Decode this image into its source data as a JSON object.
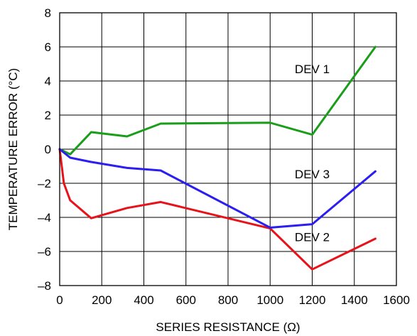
{
  "chart_data": {
    "type": "line",
    "title": "",
    "xlabel": "SERIES RESISTANCE (Ω)",
    "ylabel": "TEMPERATURE ERROR (°C)",
    "xlim": [
      0,
      1600
    ],
    "ylim": [
      -8,
      8
    ],
    "x_ticks": [
      0,
      200,
      400,
      600,
      800,
      1000,
      1200,
      1400,
      1600
    ],
    "y_ticks": [
      -8,
      -6,
      -4,
      -2,
      0,
      2,
      4,
      6,
      8
    ],
    "x_tick_labels": [
      "0",
      "200",
      "400",
      "600",
      "800",
      "1000",
      "1200",
      "1400",
      "1600"
    ],
    "y_tick_labels": [
      "–8",
      "–6",
      "–4",
      "–2",
      "0",
      "2",
      "4",
      "6",
      "8"
    ],
    "grid": true,
    "legend": "none",
    "series": [
      {
        "name": "DEV 1",
        "color": "#1a9e1a",
        "x": [
          0,
          50,
          150,
          320,
          480,
          1000,
          1200,
          1500
        ],
        "y": [
          0,
          -0.3,
          1.0,
          0.75,
          1.5,
          1.55,
          0.85,
          6.0
        ],
        "label_at": [
          1200,
          4.7
        ]
      },
      {
        "name": "DEV 2",
        "color": "#e8121a",
        "x": [
          0,
          20,
          50,
          150,
          320,
          480,
          1000,
          1200,
          1500
        ],
        "y": [
          0,
          -2.0,
          -3.0,
          -4.05,
          -3.45,
          -3.1,
          -4.65,
          -7.05,
          -5.25
        ],
        "label_at": [
          1200,
          -5.15
        ]
      },
      {
        "name": "DEV 3",
        "color": "#2a1ef0",
        "x": [
          0,
          50,
          150,
          320,
          480,
          1000,
          1200,
          1500
        ],
        "y": [
          0,
          -0.5,
          -0.75,
          -1.1,
          -1.25,
          -4.6,
          -4.4,
          -1.3
        ],
        "label_at": [
          1200,
          -1.45
        ]
      }
    ]
  }
}
